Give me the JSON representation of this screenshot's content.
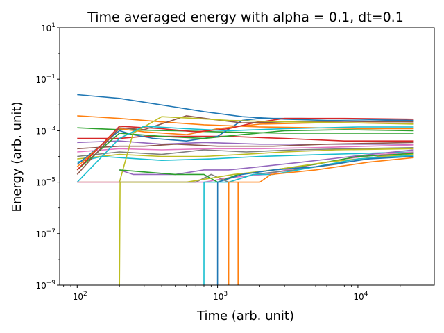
{
  "chart_data": {
    "type": "line",
    "title": "Time averaged energy with alpha = 0.1, dt=0.1",
    "xlabel": "Time (arb. unit)",
    "ylabel": "Energy (arb. unit)",
    "xscale": "log",
    "yscale": "log",
    "xlim": [
      75,
      35000
    ],
    "ylim": [
      1e-09,
      10
    ],
    "grid": false,
    "x_ticks": [
      {
        "value": 100,
        "base": "10",
        "exp": "2"
      },
      {
        "value": 1000,
        "base": "10",
        "exp": "3"
      },
      {
        "value": 10000,
        "base": "10",
        "exp": "4"
      }
    ],
    "y_ticks": [
      {
        "value": 1e-09,
        "base": "10",
        "exp": "−9"
      },
      {
        "value": 1e-07,
        "base": "10",
        "exp": "−7"
      },
      {
        "value": 1e-05,
        "base": "10",
        "exp": "−5"
      },
      {
        "value": 0.001,
        "base": "10",
        "exp": "−3"
      },
      {
        "value": 0.1,
        "base": "10",
        "exp": "−1"
      },
      {
        "value": 10,
        "base": "10",
        "exp": "1"
      }
    ],
    "series": [
      {
        "color": "#1f77b4",
        "points": [
          [
            100,
            0.025
          ],
          [
            200,
            0.018
          ],
          [
            400,
            0.01
          ],
          [
            800,
            0.0055
          ],
          [
            1500,
            0.0035
          ],
          [
            3000,
            0.0028
          ],
          [
            6000,
            0.0025
          ],
          [
            12000,
            0.0024
          ],
          [
            25000,
            0.0024
          ]
        ]
      },
      {
        "color": "#ff7f0e",
        "points": [
          [
            100,
            0.0038
          ],
          [
            200,
            0.003
          ],
          [
            400,
            0.0022
          ],
          [
            800,
            0.0017
          ],
          [
            2000,
            0.0014
          ],
          [
            5000,
            0.0013
          ],
          [
            12000,
            0.0012
          ],
          [
            25000,
            0.0012
          ]
        ]
      },
      {
        "color": "#2ca02c",
        "points": [
          [
            100,
            0.0013
          ],
          [
            200,
            0.0011
          ],
          [
            500,
            0.001
          ],
          [
            1000,
            0.0009
          ],
          [
            3000,
            0.0008
          ],
          [
            8000,
            0.0008
          ],
          [
            25000,
            0.0008
          ]
        ]
      },
      {
        "color": "#d62728",
        "points": [
          [
            100,
            0.0005
          ],
          [
            200,
            0.0005
          ],
          [
            300,
            0.0006
          ],
          [
            600,
            0.0006
          ],
          [
            1200,
            0.0006
          ],
          [
            3000,
            0.0005
          ],
          [
            8000,
            0.0004
          ],
          [
            25000,
            0.0004
          ]
        ]
      },
      {
        "color": "#9467bd",
        "points": [
          [
            100,
            0.00035
          ],
          [
            200,
            0.0004
          ],
          [
            400,
            0.0003
          ],
          [
            800,
            0.00035
          ],
          [
            2000,
            0.0003
          ],
          [
            6000,
            0.0003
          ],
          [
            25000,
            0.0003
          ]
        ]
      },
      {
        "color": "#8c564b",
        "points": [
          [
            100,
            0.0002
          ],
          [
            200,
            0.00025
          ],
          [
            300,
            0.00025
          ],
          [
            500,
            0.0003
          ],
          [
            1000,
            0.00025
          ],
          [
            2500,
            0.00025
          ],
          [
            6000,
            0.0003
          ],
          [
            25000,
            0.00035
          ]
        ]
      },
      {
        "color": "#e377c2",
        "points": [
          [
            100,
            0.00015
          ],
          [
            200,
            0.0002
          ],
          [
            400,
            0.00018
          ],
          [
            900,
            0.0002
          ],
          [
            2000,
            0.0002
          ],
          [
            5000,
            0.00022
          ],
          [
            12000,
            0.00025
          ],
          [
            25000,
            0.00028
          ]
        ]
      },
      {
        "color": "#7f7f7f",
        "points": [
          [
            100,
            0.0001
          ],
          [
            200,
            0.00015
          ],
          [
            400,
            0.00012
          ],
          [
            800,
            0.00018
          ],
          [
            1600,
            0.00015
          ],
          [
            3500,
            0.00018
          ],
          [
            9000,
            0.0002
          ],
          [
            25000,
            0.00022
          ]
        ]
      },
      {
        "color": "#bcbd22",
        "points": [
          [
            100,
            8e-05
          ],
          [
            200,
            0.00012
          ],
          [
            400,
            0.0001
          ],
          [
            800,
            0.0001
          ],
          [
            1500,
            0.00012
          ],
          [
            3000,
            0.00015
          ],
          [
            7000,
            0.00018
          ],
          [
            25000,
            0.0002
          ]
        ]
      },
      {
        "color": "#17becf",
        "points": [
          [
            100,
            6e-05
          ],
          [
            150,
            0.0001
          ],
          [
            200,
            9e-05
          ],
          [
            400,
            7e-05
          ],
          [
            900,
            8e-05
          ],
          [
            2000,
            0.0001
          ],
          [
            6000,
            0.00012
          ],
          [
            25000,
            0.00015
          ]
        ]
      },
      {
        "color": "#1f77b4",
        "points": [
          [
            100,
            5e-05
          ],
          [
            200,
            0.001
          ],
          [
            250,
            0.0007
          ],
          [
            350,
            0.0005
          ],
          [
            600,
            0.0004
          ],
          [
            1000,
            0.0006
          ],
          [
            1500,
            0.0025
          ],
          [
            2000,
            0.003
          ],
          [
            4000,
            0.003
          ],
          [
            10000,
            0.0028
          ],
          [
            25000,
            0.0025
          ]
        ]
      },
      {
        "color": "#ff7f0e",
        "points": [
          [
            100,
            4e-05
          ],
          [
            200,
            0.0012
          ],
          [
            300,
            0.0009
          ],
          [
            600,
            0.0007
          ],
          [
            1000,
            0.0012
          ],
          [
            2000,
            0.0018
          ],
          [
            5000,
            0.002
          ],
          [
            12000,
            0.002
          ],
          [
            25000,
            0.0019
          ]
        ]
      },
      {
        "color": "#2ca02c",
        "points": [
          [
            100,
            3e-05
          ],
          [
            200,
            0.0008
          ],
          [
            400,
            0.0006
          ],
          [
            800,
            0.0005
          ],
          [
            1500,
            0.0007
          ],
          [
            3000,
            0.001
          ],
          [
            8000,
            0.0011
          ],
          [
            25000,
            0.001
          ]
        ]
      },
      {
        "color": "#d62728",
        "points": [
          [
            100,
            3e-05
          ],
          [
            200,
            0.0015
          ],
          [
            400,
            0.0012
          ],
          [
            700,
            0.0009
          ],
          [
            1200,
            0.0012
          ],
          [
            1800,
            0.002
          ],
          [
            3000,
            0.003
          ],
          [
            8000,
            0.003
          ],
          [
            25000,
            0.0028
          ]
        ]
      },
      {
        "color": "#8c564b",
        "points": [
          [
            100,
            2e-05
          ],
          [
            200,
            0.0013
          ],
          [
            300,
            0.0011
          ],
          [
            600,
            0.0038
          ],
          [
            900,
            0.0028
          ],
          [
            1500,
            0.002
          ],
          [
            3000,
            0.0022
          ],
          [
            8000,
            0.0023
          ],
          [
            25000,
            0.0022
          ]
        ]
      },
      {
        "color": "#bcbd22",
        "points": [
          [
            100,
            1e-05
          ],
          [
            200,
            1e-05
          ],
          [
            250,
            0.0008
          ],
          [
            400,
            0.0035
          ],
          [
            700,
            0.003
          ],
          [
            1200,
            0.0025
          ],
          [
            3000,
            0.0022
          ],
          [
            10000,
            0.002
          ],
          [
            25000,
            0.0018
          ]
        ]
      },
      {
        "color": "#17becf",
        "points": [
          [
            100,
            1e-05
          ],
          [
            200,
            0.0005
          ],
          [
            300,
            0.0015
          ],
          [
            600,
            0.0012
          ],
          [
            1200,
            0.001
          ],
          [
            3000,
            0.0012
          ],
          [
            10000,
            0.0014
          ],
          [
            25000,
            0.0014
          ]
        ]
      },
      {
        "color": "#9467bd",
        "points": [
          [
            200,
            3e-05
          ],
          [
            250,
            2e-05
          ],
          [
            500,
            2e-05
          ],
          [
            800,
            3e-05
          ],
          [
            1200,
            3e-05
          ],
          [
            2000,
            4e-05
          ],
          [
            4000,
            6e-05
          ],
          [
            9000,
            0.0001
          ],
          [
            25000,
            0.00018
          ]
        ]
      },
      {
        "color": "#e377c2",
        "points": [
          [
            100,
            1e-05
          ],
          [
            200,
            1e-05
          ],
          [
            400,
            1e-05
          ],
          [
            800,
            1e-05
          ],
          [
            1200,
            1.5e-05
          ],
          [
            2200,
            2e-05
          ],
          [
            4000,
            4e-05
          ],
          [
            8000,
            8e-05
          ],
          [
            15000,
            0.00012
          ],
          [
            25000,
            0.00015
          ]
        ]
      },
      {
        "color": "#7f7f7f",
        "points": [
          [
            200,
            1e-05
          ],
          [
            700,
            1e-05
          ],
          [
            900,
            2e-05
          ],
          [
            1200,
            1e-05
          ],
          [
            1800,
            2e-05
          ],
          [
            3500,
            3e-05
          ],
          [
            7000,
            5e-05
          ],
          [
            14000,
            0.0001
          ],
          [
            25000,
            0.00014
          ]
        ]
      },
      {
        "color": "#2ca02c",
        "points": [
          [
            200,
            3e-05
          ],
          [
            500,
            2e-05
          ],
          [
            800,
            2e-05
          ],
          [
            1000,
            1e-05
          ],
          [
            1400,
            2e-05
          ],
          [
            2500,
            3e-05
          ],
          [
            5000,
            5e-05
          ],
          [
            10000,
            0.0001
          ],
          [
            25000,
            0.00013
          ]
        ]
      },
      {
        "color": "#bcbd22",
        "points": [
          [
            200,
            1e-09
          ],
          [
            202,
            1e-05
          ],
          [
            600,
            1e-05
          ],
          [
            1300,
            2e-05
          ],
          [
            2500,
            3e-05
          ],
          [
            6000,
            6e-05
          ],
          [
            15000,
            0.0001
          ],
          [
            25000,
            0.00012
          ]
        ]
      },
      {
        "color": "#17becf",
        "points": [
          [
            800,
            1e-09
          ],
          [
            801,
            1e-05
          ],
          [
            1200,
            1e-05
          ],
          [
            1800,
            2e-05
          ],
          [
            2500,
            2e-05
          ],
          [
            5000,
            4e-05
          ],
          [
            10000,
            8e-05
          ],
          [
            25000,
            0.00011
          ]
        ]
      },
      {
        "color": "#1f77b4",
        "points": [
          [
            1000,
            1e-09
          ],
          [
            1001,
            1e-05
          ],
          [
            1500,
            2e-05
          ],
          [
            2500,
            3e-05
          ],
          [
            5000,
            4e-05
          ],
          [
            12000,
            8e-05
          ],
          [
            25000,
            0.0001
          ]
        ]
      },
      {
        "color": "#ff7f0e",
        "points": [
          [
            1200,
            1e-09
          ],
          [
            1201,
            1e-05
          ],
          [
            1400,
            1e-05
          ],
          [
            1400,
            1e-09
          ],
          [
            1400,
            1e-05
          ],
          [
            2000,
            1e-05
          ],
          [
            2400,
            2e-05
          ],
          [
            5000,
            3e-05
          ],
          [
            12000,
            6e-05
          ],
          [
            25000,
            9e-05
          ]
        ]
      }
    ]
  }
}
